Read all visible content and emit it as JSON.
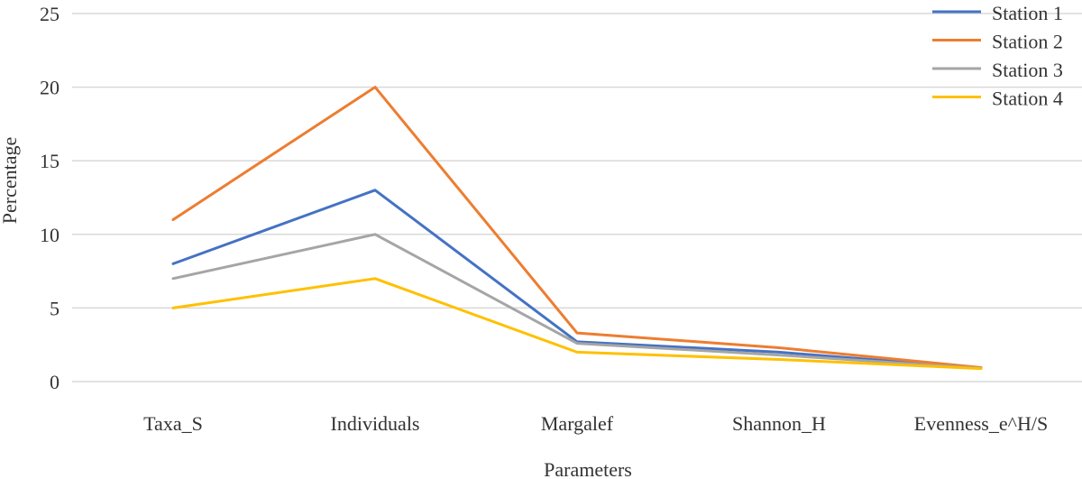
{
  "chart_data": {
    "type": "line",
    "title": "",
    "xlabel": "Parameters",
    "ylabel": "Percentage",
    "ylim": [
      0,
      25
    ],
    "yticks": [
      0,
      5,
      10,
      15,
      20,
      25
    ],
    "grid": true,
    "legend_position": "top-right",
    "categories": [
      "Taxa_S",
      "Individuals",
      "Margalef",
      "Shannon_H",
      "Evenness_e^H/S"
    ],
    "series": [
      {
        "name": "Station 1",
        "color": "#4472c4",
        "values": [
          8,
          13,
          2.7,
          2.0,
          0.9
        ]
      },
      {
        "name": "Station 2",
        "color": "#ed7d31",
        "values": [
          11,
          20,
          3.3,
          2.3,
          0.95
        ]
      },
      {
        "name": "Station 3",
        "color": "#a5a5a5",
        "values": [
          7,
          10,
          2.6,
          1.8,
          0.9
        ]
      },
      {
        "name": "Station 4",
        "color": "#ffc000",
        "values": [
          5,
          7,
          2.0,
          1.5,
          0.88
        ]
      }
    ]
  }
}
